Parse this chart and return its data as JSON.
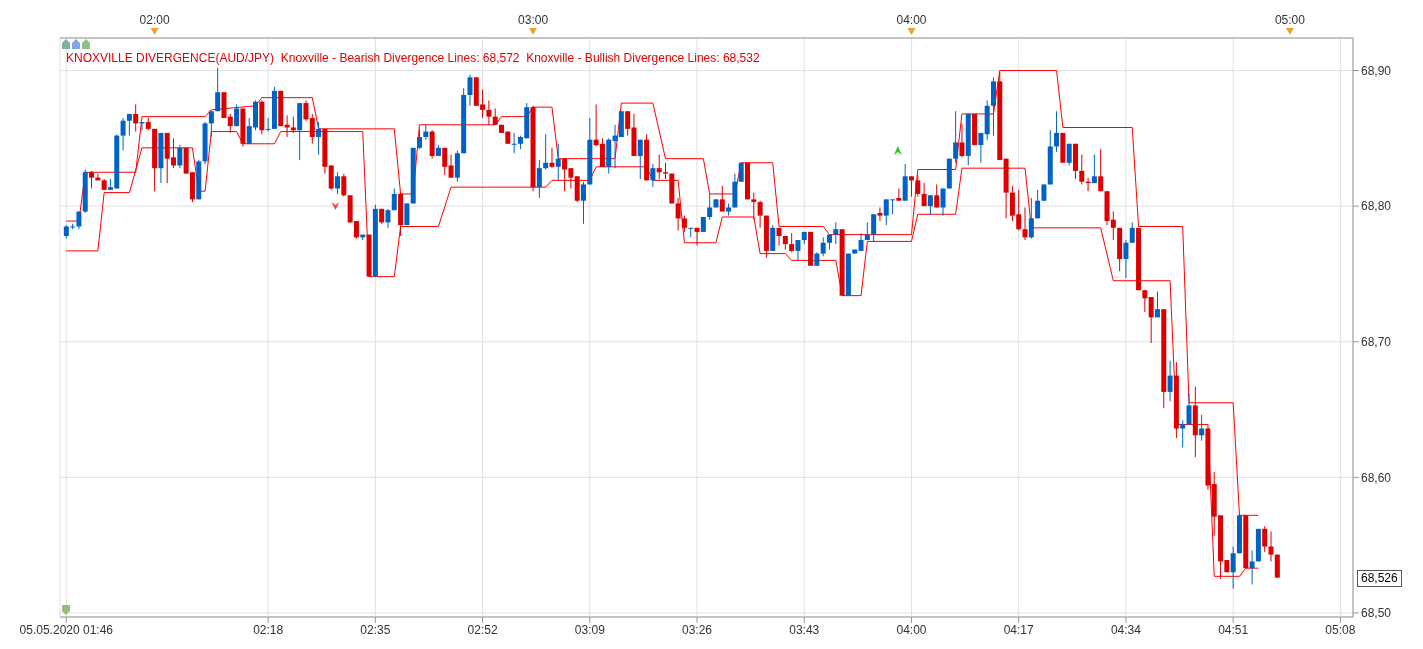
{
  "chart_data": {
    "type": "candlestick",
    "title": "KNOXVILLE DIVERGENCE(AUD/JPY)  Knoxville - Bearish Divergence Lines: 68,572  Knoxville - Bullish Divergence Lines: 68,532",
    "x": [
      "2020-05-05T01:46",
      "2020-05-05T01:47",
      "2020-05-05T01:48",
      "2020-05-05T01:49",
      "2020-05-05T01:50",
      "2020-05-05T01:51",
      "2020-05-05T01:52",
      "2020-05-05T01:53",
      "2020-05-05T01:54",
      "2020-05-05T01:55",
      "2020-05-05T01:56",
      "2020-05-05T01:57",
      "2020-05-05T01:58",
      "2020-05-05T01:59",
      "2020-05-05T02:00",
      "2020-05-05T02:01",
      "2020-05-05T02:02",
      "2020-05-05T02:03",
      "2020-05-05T02:04",
      "2020-05-05T02:05",
      "2020-05-05T02:06",
      "2020-05-05T02:07",
      "2020-05-05T02:08",
      "2020-05-05T02:09",
      "2020-05-05T02:10",
      "2020-05-05T02:11",
      "2020-05-05T02:12",
      "2020-05-05T02:13",
      "2020-05-05T02:14",
      "2020-05-05T02:15",
      "2020-05-05T02:16",
      "2020-05-05T02:17",
      "2020-05-05T02:18",
      "2020-05-05T02:19",
      "2020-05-05T02:20",
      "2020-05-05T02:21",
      "2020-05-05T02:22",
      "2020-05-05T02:23",
      "2020-05-05T02:24",
      "2020-05-05T02:25",
      "2020-05-05T02:26",
      "2020-05-05T02:27",
      "2020-05-05T02:28",
      "2020-05-05T02:29",
      "2020-05-05T02:30",
      "2020-05-05T02:31",
      "2020-05-05T02:32",
      "2020-05-05T02:33",
      "2020-05-05T02:34",
      "2020-05-05T02:35",
      "2020-05-05T02:36",
      "2020-05-05T02:37",
      "2020-05-05T02:38",
      "2020-05-05T02:39",
      "2020-05-05T02:40",
      "2020-05-05T02:41",
      "2020-05-05T02:42",
      "2020-05-05T02:43",
      "2020-05-05T02:44",
      "2020-05-05T02:45",
      "2020-05-05T02:46",
      "2020-05-05T02:47",
      "2020-05-05T02:48",
      "2020-05-05T02:49",
      "2020-05-05T02:50",
      "2020-05-05T02:51",
      "2020-05-05T02:52",
      "2020-05-05T02:53",
      "2020-05-05T02:54",
      "2020-05-05T02:55",
      "2020-05-05T02:56",
      "2020-05-05T02:57",
      "2020-05-05T02:58",
      "2020-05-05T02:59",
      "2020-05-05T03:00",
      "2020-05-05T03:01",
      "2020-05-05T03:02",
      "2020-05-05T03:03",
      "2020-05-05T03:04",
      "2020-05-05T03:05",
      "2020-05-05T03:06",
      "2020-05-05T03:07",
      "2020-05-05T03:08",
      "2020-05-05T03:09",
      "2020-05-05T03:10",
      "2020-05-05T03:11",
      "2020-05-05T03:12",
      "2020-05-05T03:13",
      "2020-05-05T03:14",
      "2020-05-05T03:15",
      "2020-05-05T03:16",
      "2020-05-05T03:17",
      "2020-05-05T03:18",
      "2020-05-05T03:19",
      "2020-05-05T03:20",
      "2020-05-05T03:21",
      "2020-05-05T03:22",
      "2020-05-05T03:23",
      "2020-05-05T03:24",
      "2020-05-05T03:25",
      "2020-05-05T03:26",
      "2020-05-05T03:27",
      "2020-05-05T03:28",
      "2020-05-05T03:29",
      "2020-05-05T03:30",
      "2020-05-05T03:31",
      "2020-05-05T03:32",
      "2020-05-05T03:33",
      "2020-05-05T03:34",
      "2020-05-05T03:35",
      "2020-05-05T03:36",
      "2020-05-05T03:37",
      "2020-05-05T03:38",
      "2020-05-05T03:39",
      "2020-05-05T03:40",
      "2020-05-05T03:41",
      "2020-05-05T03:42",
      "2020-05-05T03:43",
      "2020-05-05T03:44",
      "2020-05-05T03:45",
      "2020-05-05T03:46",
      "2020-05-05T03:47",
      "2020-05-05T03:48",
      "2020-05-05T03:49",
      "2020-05-05T03:50",
      "2020-05-05T03:51",
      "2020-05-05T03:52",
      "2020-05-05T03:53",
      "2020-05-05T03:54",
      "2020-05-05T03:55",
      "2020-05-05T03:56",
      "2020-05-05T03:57",
      "2020-05-05T03:58",
      "2020-05-05T03:59",
      "2020-05-05T04:00",
      "2020-05-05T04:01",
      "2020-05-05T04:02",
      "2020-05-05T04:03",
      "2020-05-05T04:04",
      "2020-05-05T04:05",
      "2020-05-05T04:06",
      "2020-05-05T04:07",
      "2020-05-05T04:08",
      "2020-05-05T04:09",
      "2020-05-05T04:10",
      "2020-05-05T04:11",
      "2020-05-05T04:12",
      "2020-05-05T04:13",
      "2020-05-05T04:14",
      "2020-05-05T04:15",
      "2020-05-05T04:16",
      "2020-05-05T04:17",
      "2020-05-05T04:18",
      "2020-05-05T04:19",
      "2020-05-05T04:20",
      "2020-05-05T04:21",
      "2020-05-05T04:22",
      "2020-05-05T04:23",
      "2020-05-05T04:24",
      "2020-05-05T04:25",
      "2020-05-05T04:26",
      "2020-05-05T04:27",
      "2020-05-05T04:28",
      "2020-05-05T04:29",
      "2020-05-05T04:30",
      "2020-05-05T04:31",
      "2020-05-05T04:32",
      "2020-05-05T04:33",
      "2020-05-05T04:34",
      "2020-05-05T04:35",
      "2020-05-05T04:36",
      "2020-05-05T04:37",
      "2020-05-05T04:38",
      "2020-05-05T04:39",
      "2020-05-05T04:40",
      "2020-05-05T04:41",
      "2020-05-05T04:42",
      "2020-05-05T04:43",
      "2020-05-05T04:44",
      "2020-05-05T04:45",
      "2020-05-05T04:46",
      "2020-05-05T04:47",
      "2020-05-05T04:48",
      "2020-05-05T04:49",
      "2020-05-05T04:50",
      "2020-05-05T04:51",
      "2020-05-05T04:52",
      "2020-05-05T04:53",
      "2020-05-05T04:54",
      "2020-05-05T04:55",
      "2020-05-05T04:56",
      "2020-05-05T04:57",
      "2020-05-05T04:58"
    ],
    "ohlc": [
      [
        68.778,
        68.786,
        68.776,
        68.785
      ],
      [
        68.785,
        68.787,
        68.783,
        68.785
      ],
      [
        68.785,
        68.796,
        68.783,
        68.796
      ],
      [
        68.796,
        68.827,
        68.795,
        68.825
      ],
      [
        68.825,
        68.826,
        68.813,
        68.821
      ],
      [
        68.821,
        68.824,
        68.819,
        68.819
      ],
      [
        68.819,
        68.82,
        68.812,
        68.812
      ],
      [
        68.812,
        68.82,
        68.812,
        68.814
      ],
      [
        68.813,
        68.853,
        68.813,
        68.852
      ],
      [
        68.852,
        68.865,
        68.841,
        68.863
      ],
      [
        68.863,
        68.868,
        68.852,
        68.868
      ],
      [
        68.868,
        68.875,
        68.855,
        68.861
      ],
      [
        68.861,
        68.862,
        68.856,
        68.862
      ],
      [
        68.862,
        68.865,
        68.856,
        68.857
      ],
      [
        68.857,
        68.857,
        68.811,
        68.828
      ],
      [
        68.828,
        68.854,
        68.817,
        68.854
      ],
      [
        68.854,
        68.854,
        68.817,
        68.835
      ],
      [
        68.836,
        68.85,
        68.828,
        68.83
      ],
      [
        68.83,
        68.845,
        68.828,
        68.843
      ],
      [
        68.843,
        68.843,
        68.824,
        68.824
      ],
      [
        68.825,
        68.825,
        68.803,
        68.805
      ],
      [
        68.805,
        68.834,
        68.805,
        68.833
      ],
      [
        68.833,
        68.862,
        68.831,
        68.861
      ],
      [
        68.861,
        68.87,
        68.851,
        68.87
      ],
      [
        68.87,
        68.902,
        68.87,
        68.884
      ],
      [
        68.884,
        68.884,
        68.865,
        68.865
      ],
      [
        68.866,
        68.868,
        68.854,
        68.859
      ],
      [
        68.859,
        68.875,
        68.859,
        68.872
      ],
      [
        68.872,
        68.872,
        68.844,
        68.846
      ],
      [
        68.846,
        68.865,
        68.846,
        68.859
      ],
      [
        68.858,
        68.878,
        68.856,
        68.877
      ],
      [
        68.877,
        68.878,
        68.853,
        68.856
      ],
      [
        68.857,
        68.865,
        68.855,
        68.857
      ],
      [
        68.857,
        68.888,
        68.857,
        68.885
      ],
      [
        68.885,
        68.885,
        68.859,
        68.859
      ],
      [
        68.86,
        68.867,
        68.851,
        68.858
      ],
      [
        68.858,
        68.866,
        68.854,
        68.856
      ],
      [
        68.856,
        68.876,
        68.834,
        68.876
      ],
      [
        68.876,
        68.878,
        68.863,
        68.864
      ],
      [
        68.865,
        68.868,
        68.846,
        68.851
      ],
      [
        68.851,
        68.862,
        68.838,
        68.857
      ],
      [
        68.857,
        68.857,
        68.824,
        68.829
      ],
      [
        68.83,
        68.83,
        68.812,
        68.813
      ],
      [
        68.813,
        68.825,
        68.809,
        68.822
      ],
      [
        68.822,
        68.824,
        68.807,
        68.808
      ],
      [
        68.808,
        68.808,
        68.788,
        68.788
      ],
      [
        68.789,
        68.789,
        68.776,
        68.777
      ],
      [
        68.777,
        68.779,
        68.775,
        68.779
      ],
      [
        68.779,
        68.779,
        68.748,
        68.748
      ],
      [
        68.748,
        68.801,
        68.748,
        68.798
      ],
      [
        68.798,
        68.798,
        68.787,
        68.788
      ],
      [
        68.788,
        68.798,
        68.784,
        68.797
      ],
      [
        68.797,
        68.813,
        68.797,
        68.809
      ],
      [
        68.809,
        68.809,
        68.778,
        68.786
      ],
      [
        68.786,
        68.802,
        68.786,
        68.802
      ],
      [
        68.802,
        68.843,
        68.802,
        68.843
      ],
      [
        68.843,
        68.857,
        68.842,
        68.851
      ],
      [
        68.851,
        68.86,
        68.849,
        68.855
      ],
      [
        68.855,
        68.856,
        68.835,
        68.837
      ],
      [
        68.837,
        68.845,
        68.837,
        68.843
      ],
      [
        68.843,
        68.843,
        68.823,
        68.829
      ],
      [
        68.83,
        68.838,
        68.821,
        68.821
      ],
      [
        68.821,
        68.841,
        68.818,
        68.839
      ],
      [
        68.839,
        68.887,
        68.839,
        68.882
      ],
      [
        68.882,
        68.897,
        68.874,
        68.895
      ],
      [
        68.895,
        68.895,
        68.874,
        68.874
      ],
      [
        68.875,
        68.886,
        68.865,
        68.871
      ],
      [
        68.871,
        68.878,
        68.86,
        68.866
      ],
      [
        68.866,
        68.872,
        68.86,
        68.86
      ],
      [
        68.86,
        68.86,
        68.854,
        68.854
      ],
      [
        68.855,
        68.855,
        68.846,
        68.846
      ],
      [
        68.846,
        68.854,
        68.839,
        68.846
      ],
      [
        68.846,
        68.852,
        68.842,
        68.851
      ],
      [
        68.85,
        68.876,
        68.85,
        68.873
      ],
      [
        68.873,
        68.874,
        68.811,
        68.814
      ],
      [
        68.814,
        68.834,
        68.806,
        68.828
      ],
      [
        68.828,
        68.853,
        68.827,
        68.832
      ],
      [
        68.832,
        68.843,
        68.828,
        68.829
      ],
      [
        68.829,
        68.846,
        68.819,
        68.835
      ],
      [
        68.835,
        68.835,
        68.811,
        68.827
      ],
      [
        68.828,
        68.828,
        68.813,
        68.821
      ],
      [
        68.822,
        68.822,
        68.803,
        68.804
      ],
      [
        68.804,
        68.818,
        68.787,
        68.816
      ],
      [
        68.816,
        68.865,
        68.816,
        68.849
      ],
      [
        68.849,
        68.875,
        68.844,
        68.845
      ],
      [
        68.846,
        68.85,
        68.829,
        68.829
      ],
      [
        68.829,
        68.85,
        68.824,
        68.849
      ],
      [
        68.848,
        68.86,
        68.828,
        68.852
      ],
      [
        68.851,
        68.87,
        68.851,
        68.87
      ],
      [
        68.87,
        68.87,
        68.852,
        68.857
      ],
      [
        68.858,
        68.868,
        68.837,
        68.837
      ],
      [
        68.837,
        68.849,
        68.82,
        68.849
      ],
      [
        68.849,
        68.853,
        68.819,
        68.819
      ],
      [
        68.819,
        68.831,
        68.814,
        68.828
      ],
      [
        68.828,
        68.838,
        68.82,
        68.825
      ],
      [
        68.825,
        68.832,
        68.82,
        68.824
      ],
      [
        68.824,
        68.824,
        68.802,
        68.802
      ],
      [
        68.802,
        68.806,
        68.782,
        68.791
      ],
      [
        68.791,
        68.793,
        68.781,
        68.784
      ],
      [
        68.784,
        68.784,
        68.777,
        68.784
      ],
      [
        68.784,
        68.784,
        68.771,
        68.781
      ],
      [
        68.781,
        68.792,
        68.781,
        68.792
      ],
      [
        68.792,
        68.809,
        68.79,
        68.799
      ],
      [
        68.799,
        68.805,
        68.799,
        68.805
      ],
      [
        68.805,
        68.815,
        68.796,
        68.796
      ],
      [
        68.796,
        68.802,
        68.793,
        68.799
      ],
      [
        68.799,
        68.824,
        68.799,
        68.818
      ],
      [
        68.818,
        68.832,
        68.818,
        68.832
      ],
      [
        68.832,
        68.832,
        68.805,
        68.805
      ],
      [
        68.805,
        68.81,
        68.79,
        68.803
      ],
      [
        68.803,
        68.804,
        68.784,
        68.793
      ],
      [
        68.793,
        68.793,
        68.762,
        68.767
      ],
      [
        68.767,
        68.786,
        68.767,
        68.784
      ],
      [
        68.784,
        68.784,
        68.771,
        68.778
      ],
      [
        68.778,
        68.778,
        68.768,
        68.772
      ],
      [
        68.772,
        68.78,
        68.766,
        68.767
      ],
      [
        68.767,
        68.775,
        68.76,
        68.775
      ],
      [
        68.775,
        68.781,
        68.772,
        68.781
      ],
      [
        68.781,
        68.781,
        68.756,
        68.756
      ],
      [
        68.756,
        68.766,
        68.756,
        68.765
      ],
      [
        68.765,
        68.777,
        68.763,
        68.773
      ],
      [
        68.773,
        68.779,
        68.768,
        68.779
      ],
      [
        68.779,
        68.788,
        68.772,
        68.783
      ],
      [
        68.783,
        68.783,
        68.734,
        68.734
      ],
      [
        68.734,
        68.765,
        68.734,
        68.765
      ],
      [
        68.765,
        68.768,
        68.765,
        68.768
      ],
      [
        68.767,
        68.78,
        68.767,
        68.775
      ],
      [
        68.775,
        68.788,
        68.775,
        68.779
      ],
      [
        68.779,
        68.794,
        68.774,
        68.794
      ],
      [
        68.795,
        68.799,
        68.789,
        68.793
      ],
      [
        68.793,
        68.805,
        68.786,
        68.805
      ],
      [
        68.805,
        68.805,
        68.794,
        68.805
      ],
      [
        68.806,
        68.813,
        68.804,
        68.804
      ],
      [
        68.804,
        68.831,
        68.804,
        68.822
      ],
      [
        68.822,
        68.822,
        68.807,
        68.819
      ],
      [
        68.819,
        68.823,
        68.807,
        68.809
      ],
      [
        68.809,
        68.817,
        68.8,
        68.8
      ],
      [
        68.8,
        68.808,
        68.794,
        68.808
      ],
      [
        68.808,
        68.816,
        68.799,
        68.799
      ],
      [
        68.799,
        68.813,
        68.793,
        68.813
      ],
      [
        68.813,
        68.835,
        68.813,
        68.835
      ],
      [
        68.835,
        68.87,
        68.832,
        68.847
      ],
      [
        68.847,
        68.861,
        68.836,
        68.837
      ],
      [
        68.837,
        68.868,
        68.83,
        68.868
      ],
      [
        68.868,
        68.868,
        68.845,
        68.845
      ],
      [
        68.845,
        68.854,
        68.832,
        68.854
      ],
      [
        68.853,
        68.878,
        68.849,
        68.874
      ],
      [
        68.874,
        68.895,
        68.852,
        68.892
      ],
      [
        68.892,
        68.899,
        68.834,
        68.834
      ],
      [
        68.835,
        68.835,
        68.791,
        68.81
      ],
      [
        68.81,
        68.815,
        68.789,
        68.793
      ],
      [
        68.794,
        68.812,
        68.782,
        68.783
      ],
      [
        68.783,
        68.799,
        68.775,
        68.777
      ],
      [
        68.777,
        68.806,
        68.776,
        68.791
      ],
      [
        68.791,
        68.812,
        68.791,
        68.804
      ],
      [
        68.804,
        68.816,
        68.804,
        68.816
      ],
      [
        68.816,
        68.856,
        68.816,
        68.844
      ],
      [
        68.844,
        68.87,
        68.84,
        68.854
      ],
      [
        68.854,
        68.854,
        68.832,
        68.832
      ],
      [
        68.832,
        68.846,
        68.83,
        68.846
      ],
      [
        68.846,
        68.846,
        68.82,
        68.826
      ],
      [
        68.826,
        68.838,
        68.816,
        68.818
      ],
      [
        68.818,
        68.821,
        68.811,
        68.817
      ],
      [
        68.817,
        68.838,
        68.817,
        68.822
      ],
      [
        68.822,
        68.842,
        68.811,
        68.811
      ],
      [
        68.811,
        68.811,
        68.786,
        68.789
      ],
      [
        68.79,
        68.796,
        68.775,
        68.784
      ],
      [
        68.784,
        68.784,
        68.752,
        68.761
      ],
      [
        68.761,
        68.775,
        68.747,
        68.773
      ],
      [
        68.773,
        68.788,
        68.773,
        68.784
      ],
      [
        68.784,
        68.784,
        68.738,
        68.738
      ],
      [
        68.738,
        68.738,
        68.722,
        68.732
      ],
      [
        68.733,
        68.733,
        68.699,
        68.718
      ],
      [
        68.718,
        68.737,
        68.718,
        68.724
      ],
      [
        68.724,
        68.724,
        68.651,
        68.663
      ],
      [
        68.663,
        68.686,
        68.656,
        68.675
      ],
      [
        68.675,
        68.685,
        68.629,
        68.636
      ],
      [
        68.636,
        68.642,
        68.622,
        68.639
      ],
      [
        68.639,
        68.662,
        68.639,
        68.653
      ],
      [
        68.653,
        68.667,
        68.615,
        68.631
      ],
      [
        68.631,
        68.646,
        68.627,
        68.636
      ],
      [
        68.636,
        68.636,
        68.591,
        68.594
      ],
      [
        68.595,
        68.604,
        68.557,
        68.571
      ],
      [
        68.572,
        68.572,
        68.525,
        68.538
      ],
      [
        68.539,
        68.539,
        68.53,
        68.53
      ],
      [
        68.53,
        68.549,
        68.518,
        68.544
      ],
      [
        68.544,
        68.573,
        68.544,
        68.572
      ],
      [
        68.572,
        68.572,
        68.533,
        68.533
      ],
      [
        68.533,
        68.546,
        68.521,
        68.538
      ],
      [
        68.538,
        68.562,
        68.538,
        68.562
      ],
      [
        68.562,
        68.564,
        68.545,
        68.549
      ],
      [
        68.549,
        68.56,
        68.538,
        68.543
      ],
      [
        68.543,
        68.543,
        68.526,
        68.526
      ]
    ],
    "colors": [
      "#0062c4",
      "#0062c4",
      "#0062c4",
      "#0062c4",
      "#dd0000",
      "#dd0000",
      "#dd0000",
      "#0062c4",
      "#0062c4",
      "#0062c4",
      "#0062c4",
      "#dd0000",
      "#0062c4",
      "#dd0000",
      "#dd0000",
      "#0062c4",
      "#dd0000",
      "#dd0000",
      "#0062c4",
      "#dd0000",
      "#dd0000",
      "#0062c4",
      "#0062c4",
      "#0062c4",
      "#0062c4",
      "#dd0000",
      "#dd0000",
      "#0062c4",
      "#dd0000",
      "#0062c4",
      "#0062c4",
      "#dd0000",
      "#0062c4",
      "#0062c4",
      "#dd0000",
      "#dd0000",
      "#dd0000",
      "#0062c4",
      "#dd0000",
      "#dd0000",
      "#0062c4",
      "#dd0000",
      "#dd0000",
      "#0062c4",
      "#dd0000",
      "#dd0000",
      "#dd0000",
      "#0062c4",
      "#dd0000",
      "#0062c4",
      "#dd0000",
      "#0062c4",
      "#0062c4",
      "#dd0000",
      "#0062c4",
      "#0062c4",
      "#0062c4",
      "#0062c4",
      "#dd0000",
      "#0062c4",
      "#dd0000",
      "#dd0000",
      "#0062c4",
      "#0062c4",
      "#0062c4",
      "#dd0000",
      "#dd0000",
      "#dd0000",
      "#dd0000",
      "#dd0000",
      "#dd0000",
      "#0062c4",
      "#0062c4",
      "#0062c4",
      "#dd0000",
      "#0062c4",
      "#0062c4",
      "#dd0000",
      "#0062c4",
      "#dd0000",
      "#dd0000",
      "#dd0000",
      "#0062c4",
      "#0062c4",
      "#dd0000",
      "#dd0000",
      "#0062c4",
      "#0062c4",
      "#0062c4",
      "#dd0000",
      "#dd0000",
      "#0062c4",
      "#dd0000",
      "#0062c4",
      "#dd0000",
      "#dd0000",
      "#dd0000",
      "#dd0000",
      "#dd0000",
      "#0062c4",
      "#dd0000",
      "#0062c4",
      "#0062c4",
      "#0062c4",
      "#dd0000",
      "#0062c4",
      "#0062c4",
      "#0062c4",
      "#dd0000",
      "#dd0000",
      "#dd0000",
      "#dd0000",
      "#0062c4",
      "#dd0000",
      "#dd0000",
      "#dd0000",
      "#0062c4",
      "#0062c4",
      "#dd0000",
      "#0062c4",
      "#0062c4",
      "#0062c4",
      "#0062c4",
      "#dd0000",
      "#0062c4",
      "#0062c4",
      "#0062c4",
      "#0062c4",
      "#0062c4",
      "#dd0000",
      "#0062c4",
      "#0062c4",
      "#dd0000",
      "#0062c4",
      "#dd0000",
      "#dd0000",
      "#dd0000",
      "#0062c4",
      "#dd0000",
      "#0062c4",
      "#0062c4",
      "#0062c4",
      "#dd0000",
      "#0062c4",
      "#dd0000",
      "#0062c4",
      "#0062c4",
      "#0062c4",
      "#dd0000",
      "#dd0000",
      "#dd0000",
      "#dd0000",
      "#dd0000",
      "#0062c4",
      "#0062c4",
      "#0062c4",
      "#0062c4",
      "#0062c4",
      "#dd0000",
      "#0062c4",
      "#dd0000",
      "#dd0000",
      "#dd0000",
      "#0062c4",
      "#dd0000",
      "#dd0000",
      "#dd0000",
      "#dd0000",
      "#0062c4",
      "#0062c4",
      "#dd0000",
      "#dd0000",
      "#dd0000",
      "#0062c4",
      "#dd0000",
      "#0062c4",
      "#dd0000",
      "#0062c4",
      "#0062c4",
      "#dd0000",
      "#0062c4",
      "#dd0000",
      "#dd0000",
      "#dd0000",
      "#dd0000",
      "#0062c4",
      "#0062c4",
      "#dd0000",
      "#0062c4",
      "#0062c4",
      "#dd0000",
      "#dd0000",
      "#dd0000"
    ],
    "series": [
      {
        "type": "line",
        "color": "#ff0000",
        "x": [
          "2020-05-05T01:46",
          "2020-05-05T01:48",
          "2020-05-05T01:49",
          "2020-05-05T01:57",
          "2020-05-05T01:58",
          "2020-05-05T02:08",
          "2020-05-05T02:09",
          "2020-05-05T02:16",
          "2020-05-05T02:17",
          "2020-05-05T02:25",
          "2020-05-05T02:26",
          "2020-05-05T02:38",
          "2020-05-05T02:39",
          "2020-05-05T02:41",
          "2020-05-05T02:42",
          "2020-05-05T02:54",
          "2020-05-05T02:55",
          "2020-05-05T02:59",
          "2020-05-05T03:00",
          "2020-05-05T03:03",
          "2020-05-05T03:04",
          "2020-05-05T03:13",
          "2020-05-05T03:14",
          "2020-05-05T03:19",
          "2020-05-05T03:21",
          "2020-05-05T03:27",
          "2020-05-05T03:28",
          "2020-05-05T03:32",
          "2020-05-05T03:33",
          "2020-05-05T03:38",
          "2020-05-05T03:39",
          "2020-05-05T03:46",
          "2020-05-05T03:47",
          "2020-05-05T04:00",
          "2020-05-05T04:01",
          "2020-05-05T04:07",
          "2020-05-05T04:08",
          "2020-05-05T04:13",
          "2020-05-05T04:14",
          "2020-05-05T04:23",
          "2020-05-05T04:24",
          "2020-05-05T04:35",
          "2020-05-05T04:36",
          "2020-05-05T04:43",
          "2020-05-05T04:44",
          "2020-05-05T04:51",
          "2020-05-05T04:52",
          "2020-05-05T04:55"
        ],
        "values": [
          68.789,
          68.789,
          68.825,
          68.825,
          68.866,
          68.866,
          68.871,
          68.874,
          68.88,
          68.88,
          68.857,
          68.857,
          68.809,
          68.809,
          68.86,
          68.86,
          68.866,
          68.866,
          68.873,
          68.873,
          68.835,
          68.835,
          68.876,
          68.876,
          68.835,
          68.835,
          68.809,
          68.809,
          68.832,
          68.832,
          68.785,
          68.785,
          68.779,
          68.779,
          68.827,
          68.827,
          68.868,
          68.868,
          68.9,
          68.9,
          68.858,
          68.858,
          68.785,
          68.785,
          68.655,
          68.655,
          68.572,
          68.572
        ]
      },
      {
        "type": "line",
        "color": "#ff0000",
        "x": [
          "2020-05-05T01:46",
          "2020-05-05T01:51",
          "2020-05-05T01:52",
          "2020-05-05T01:56",
          "2020-05-05T01:58",
          "2020-05-05T02:06",
          "2020-05-05T02:07",
          "2020-05-05T02:08",
          "2020-05-05T02:09",
          "2020-05-05T02:13",
          "2020-05-05T02:14",
          "2020-05-05T02:19",
          "2020-05-05T02:20",
          "2020-05-05T02:33",
          "2020-05-05T02:34",
          "2020-05-05T02:38",
          "2020-05-05T02:39",
          "2020-05-05T02:45",
          "2020-05-05T02:47",
          "2020-05-05T03:02",
          "2020-05-05T03:03",
          "2020-05-05T03:09",
          "2020-05-05T03:10",
          "2020-05-05T03:18",
          "2020-05-05T03:19",
          "2020-05-05T03:23",
          "2020-05-05T03:24",
          "2020-05-05T03:29",
          "2020-05-05T03:30",
          "2020-05-05T03:35",
          "2020-05-05T03:36",
          "2020-05-05T03:40",
          "2020-05-05T03:41",
          "2020-05-05T03:48",
          "2020-05-05T03:49",
          "2020-05-05T03:52",
          "2020-05-05T03:53",
          "2020-05-05T04:00",
          "2020-05-05T04:01",
          "2020-05-05T04:07",
          "2020-05-05T04:08",
          "2020-05-05T04:18",
          "2020-05-05T04:19",
          "2020-05-05T04:30",
          "2020-05-05T04:32",
          "2020-05-05T04:41",
          "2020-05-05T04:42",
          "2020-05-05T04:47",
          "2020-05-05T04:48",
          "2020-05-05T04:52",
          "2020-05-05T04:53",
          "2020-05-05T04:55"
        ],
        "values": [
          68.767,
          68.767,
          68.81,
          68.81,
          68.843,
          68.843,
          68.811,
          68.811,
          68.855,
          68.855,
          68.846,
          68.846,
          68.855,
          68.855,
          68.748,
          68.748,
          68.785,
          68.785,
          68.814,
          68.814,
          68.819,
          68.819,
          68.829,
          68.829,
          68.819,
          68.819,
          68.773,
          68.773,
          68.792,
          68.792,
          68.765,
          68.765,
          68.76,
          68.76,
          68.734,
          68.734,
          68.774,
          68.774,
          68.794,
          68.794,
          68.828,
          68.828,
          68.784,
          68.784,
          68.745,
          68.745,
          68.639,
          68.639,
          68.527,
          68.527,
          68.533,
          68.533
        ]
      }
    ],
    "xlim": [
      "2020-05-05T01:45",
      "2020-05-05T05:10"
    ],
    "xticks": [
      {
        "value": "2020-05-05T01:46",
        "label": "05.05.2020 01:46"
      },
      {
        "value": "2020-05-05T02:18",
        "label": "02:18"
      },
      {
        "value": "2020-05-05T02:35",
        "label": "02:35"
      },
      {
        "value": "2020-05-05T02:52",
        "label": "02:52"
      },
      {
        "value": "2020-05-05T03:09",
        "label": "03:09"
      },
      {
        "value": "2020-05-05T03:26",
        "label": "03:26"
      },
      {
        "value": "2020-05-05T03:43",
        "label": "03:43"
      },
      {
        "value": "2020-05-05T04:00",
        "label": "04:00"
      },
      {
        "value": "2020-05-05T04:17",
        "label": "04:17"
      },
      {
        "value": "2020-05-05T04:34",
        "label": "04:34"
      },
      {
        "value": "2020-05-05T04:51",
        "label": "04:51"
      },
      {
        "value": "2020-05-05T05:08",
        "label": "05:08"
      }
    ],
    "x2lim": [
      "2020-05-05T01:45",
      "2020-05-05T05:10"
    ],
    "x2ticks": [
      {
        "value": "2020-05-05T02:00",
        "label": "02:00"
      },
      {
        "value": "2020-05-05T03:00",
        "label": "03:00"
      },
      {
        "value": "2020-05-05T04:00",
        "label": "04:00"
      },
      {
        "value": "2020-05-05T05:00",
        "label": "05:00"
      }
    ],
    "ylim": [
      68.497,
      68.924
    ],
    "yticks": [
      {
        "value": 68.5,
        "label": "68,50"
      },
      {
        "value": 68.6,
        "label": "68,60"
      },
      {
        "value": 68.7,
        "label": "68,70"
      },
      {
        "value": 68.8,
        "label": "68,80"
      },
      {
        "value": 68.9,
        "label": "68,90"
      }
    ],
    "annotations": [
      "68,526"
    ],
    "grid": true,
    "marker": "none",
    "line_style": "solid"
  }
}
